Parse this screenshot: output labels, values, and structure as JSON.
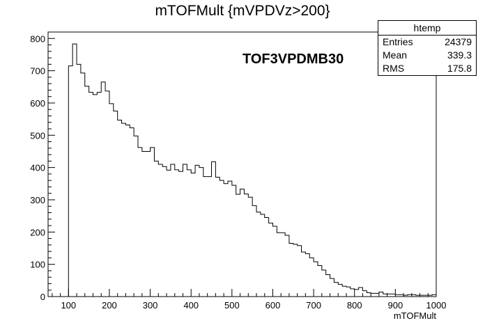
{
  "chart_data": {
    "type": "histogram",
    "title": "mTOFMult {mVPDVz>200}",
    "xlabel": "mTOFMult",
    "ylabel": "",
    "annotation": "TOF3VPDMB30",
    "xlim": [
      50,
      1000
    ],
    "ylim": [
      0,
      820
    ],
    "x_ticks": [
      100,
      200,
      300,
      400,
      500,
      600,
      700,
      800,
      900,
      1000
    ],
    "y_ticks": [
      0,
      100,
      200,
      300,
      400,
      500,
      600,
      700,
      800
    ],
    "bin_width": 10,
    "bin_start": 50,
    "values": [
      0,
      0,
      0,
      0,
      0,
      715,
      783,
      720,
      693,
      652,
      633,
      626,
      633,
      665,
      637,
      598,
      575,
      547,
      537,
      532,
      523,
      498,
      462,
      450,
      450,
      462,
      420,
      410,
      403,
      392,
      410,
      393,
      388,
      410,
      393,
      383,
      407,
      400,
      372,
      372,
      418,
      370,
      360,
      350,
      358,
      345,
      317,
      333,
      318,
      308,
      282,
      262,
      255,
      245,
      228,
      218,
      198,
      198,
      190,
      165,
      162,
      158,
      138,
      133,
      120,
      108,
      96,
      82,
      68,
      56,
      44,
      38,
      32,
      30,
      24,
      22,
      28,
      18,
      12,
      10,
      10,
      14,
      8,
      8,
      8,
      6,
      6,
      4,
      6,
      6,
      4,
      4,
      4,
      4,
      6
    ]
  },
  "stats_box": {
    "name": "htemp",
    "rows": [
      {
        "label": "Entries",
        "value": "24379"
      },
      {
        "label": "Mean",
        "value": "339.3"
      },
      {
        "label": "RMS",
        "value": "175.8"
      }
    ]
  }
}
